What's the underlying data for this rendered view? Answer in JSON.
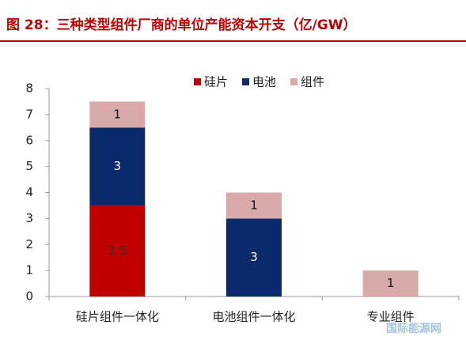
{
  "chart_data": {
    "type": "stacked_bar",
    "title": "图 28：三种类型组件厂商的单位产能资本开支（亿/GW）",
    "categories": [
      "硅片组件一体化",
      "电池组件一体化",
      "专业组件"
    ],
    "series": [
      {
        "name": "硅片",
        "color": "#c00000",
        "values": [
          3.5,
          null,
          null
        ]
      },
      {
        "name": "电池",
        "color": "#0b2a6b",
        "values": [
          3,
          3,
          null
        ]
      },
      {
        "name": "组件",
        "color": "#d9a9a9",
        "values": [
          1,
          1,
          1
        ]
      }
    ],
    "ylim": [
      0,
      8
    ],
    "yticks": [
      0,
      1,
      2,
      3,
      4,
      5,
      6,
      7,
      8
    ],
    "legend": "top",
    "watermark": "国际能源网"
  }
}
